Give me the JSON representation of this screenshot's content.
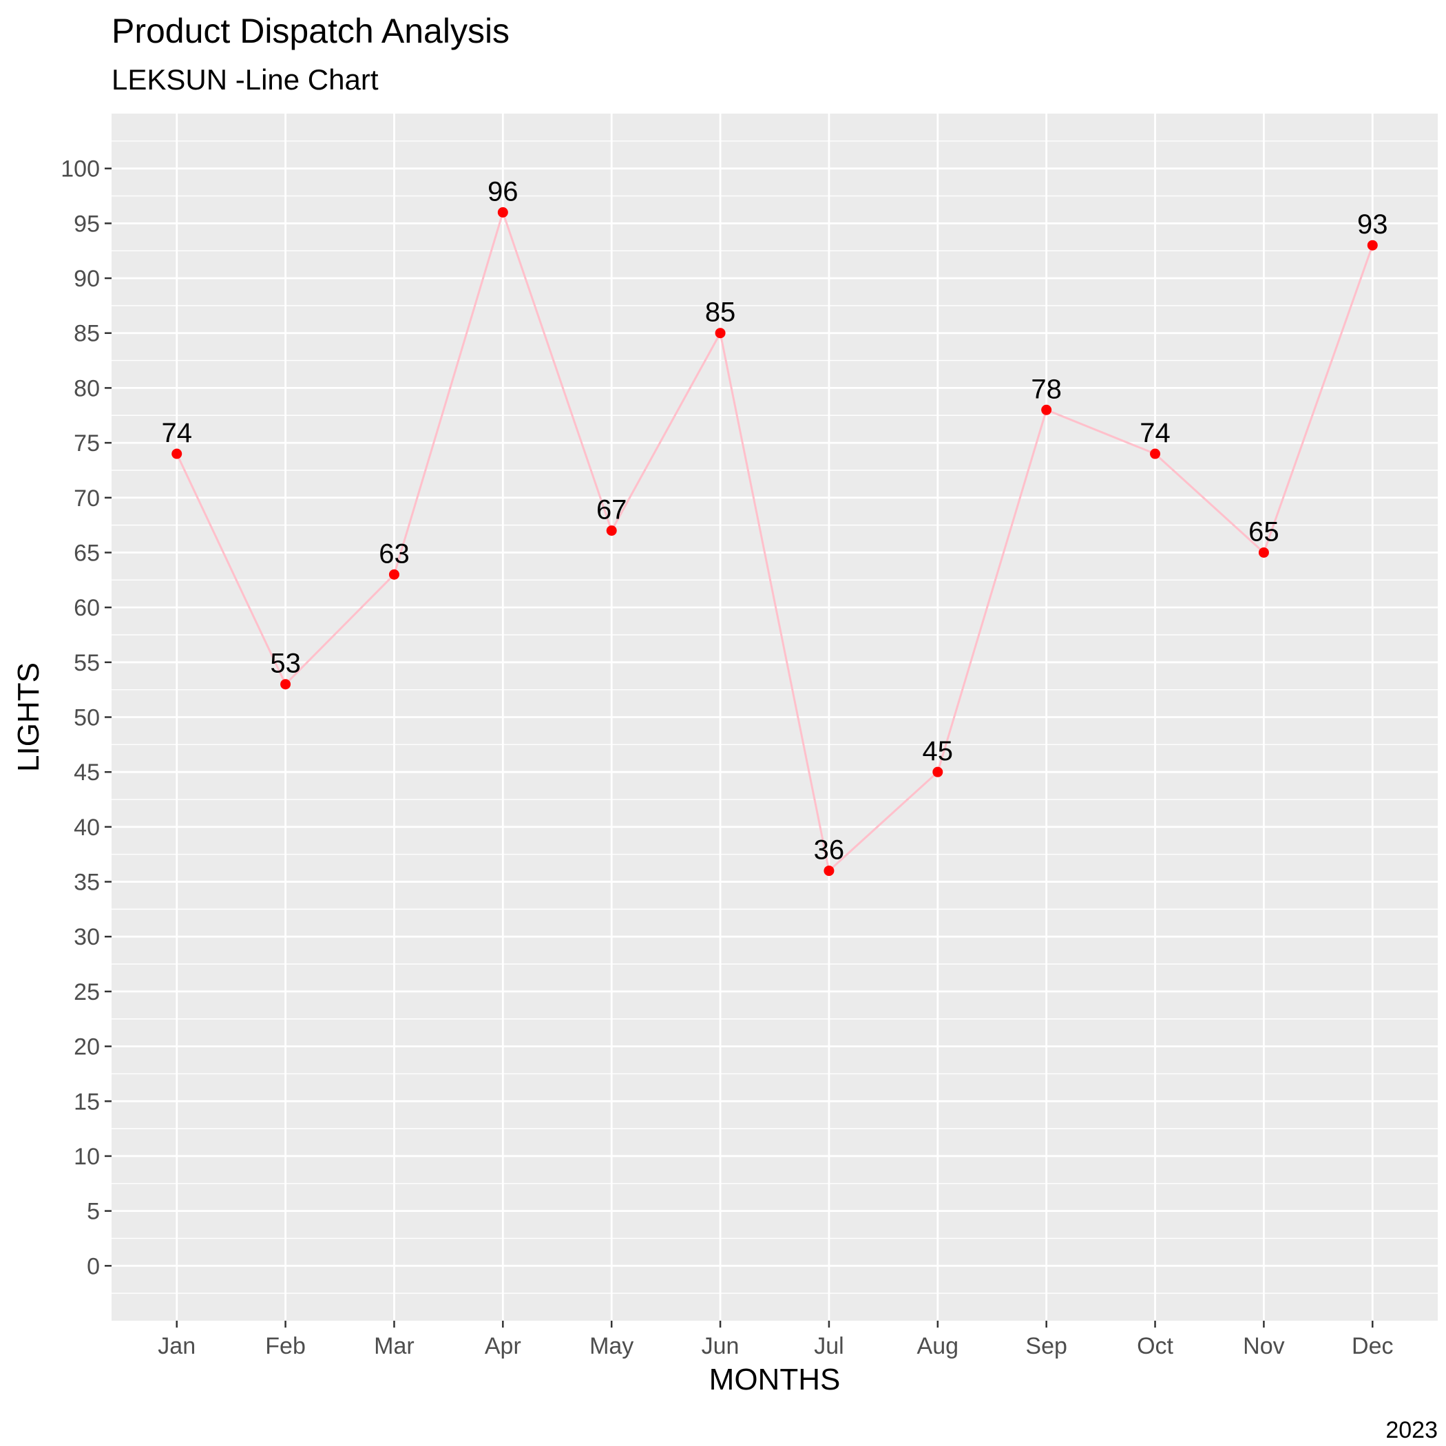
{
  "chart_data": {
    "type": "line",
    "title": "Product Dispatch Analysis",
    "subtitle": "LEKSUN -Line Chart",
    "caption": "2023",
    "xlabel": "MONTHS",
    "ylabel": "LIGHTS",
    "categories": [
      "Jan",
      "Feb",
      "Mar",
      "Apr",
      "May",
      "Jun",
      "Jul",
      "Aug",
      "Sep",
      "Oct",
      "Nov",
      "Dec"
    ],
    "values": [
      74,
      53,
      63,
      96,
      67,
      85,
      36,
      45,
      78,
      74,
      65,
      93
    ],
    "data_labels": [
      "74",
      "53",
      "63",
      "96",
      "67",
      "85",
      "36",
      "45",
      "78",
      "74",
      "65",
      "93"
    ],
    "y_ticks": [
      "0",
      "5",
      "10",
      "15",
      "20",
      "25",
      "30",
      "35",
      "40",
      "45",
      "50",
      "55",
      "60",
      "65",
      "70",
      "75",
      "80",
      "85",
      "90",
      "95",
      "100"
    ],
    "ylim": [
      -5,
      105
    ],
    "grid": true,
    "colors": {
      "panel": "#ebebeb",
      "grid": "#ffffff",
      "line": "#ffc0cb",
      "point": "#ff0000",
      "tick": "#333333"
    }
  }
}
